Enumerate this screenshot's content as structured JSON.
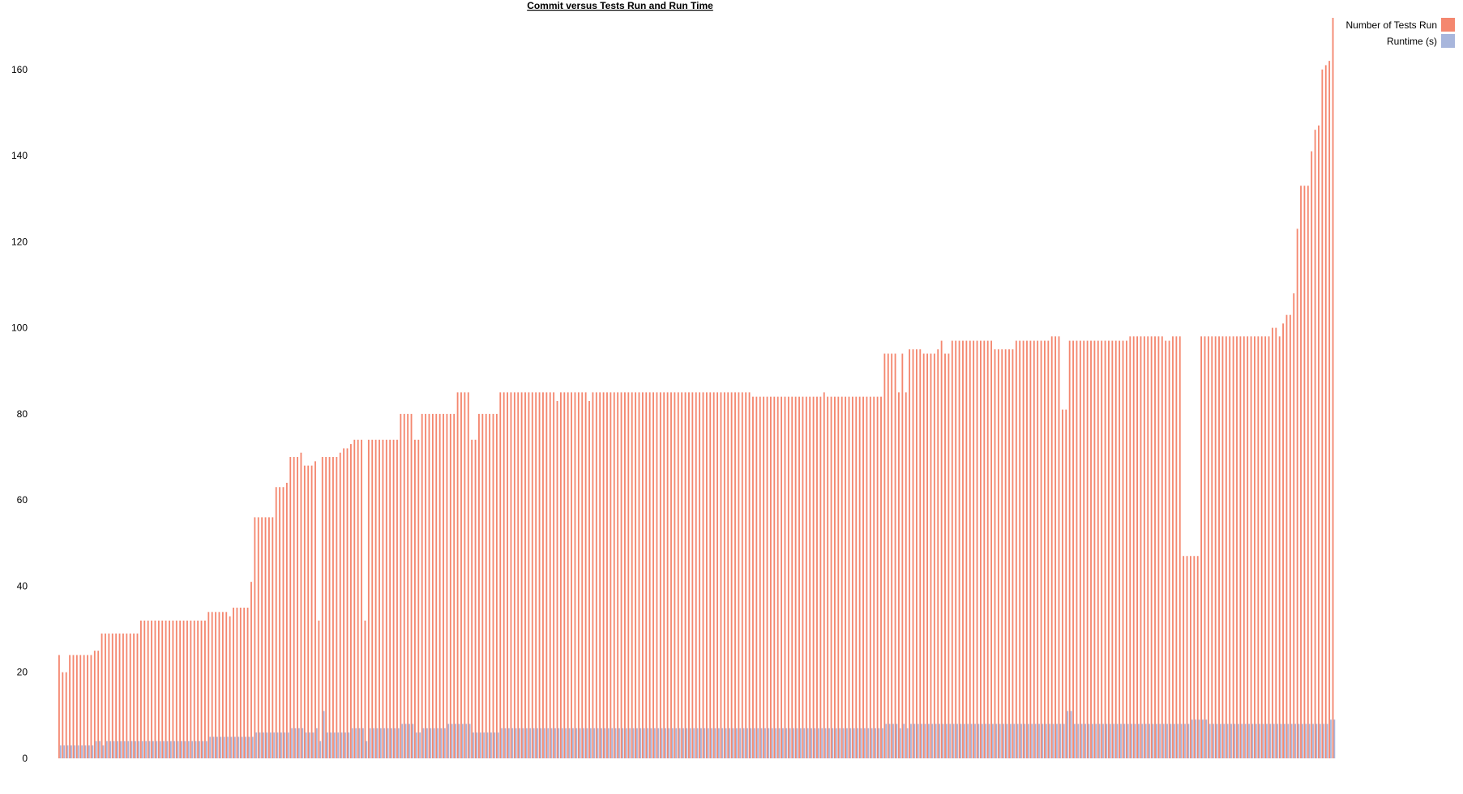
{
  "chart_data": {
    "type": "bar",
    "title": "Commit versus Tests Run and Run Time",
    "xlabel": "",
    "ylabel": "",
    "ylim": [
      0,
      172
    ],
    "yticks": [
      0,
      20,
      40,
      60,
      80,
      100,
      120,
      140,
      160
    ],
    "grid": false,
    "legend_position": "top-right",
    "series": [
      {
        "name": "Number of Tests Run",
        "color": "#f4876f",
        "values": [
          24,
          20,
          20,
          24,
          24,
          24,
          24,
          24,
          24,
          24,
          25,
          25,
          29,
          29,
          29,
          29,
          29,
          29,
          29,
          29,
          29,
          29,
          29,
          32,
          32,
          32,
          32,
          32,
          32,
          32,
          32,
          32,
          32,
          32,
          32,
          32,
          32,
          32,
          32,
          32,
          32,
          32,
          34,
          34,
          34,
          34,
          34,
          34,
          33,
          35,
          35,
          35,
          35,
          35,
          41,
          56,
          56,
          56,
          56,
          56,
          56,
          63,
          63,
          63,
          64,
          70,
          70,
          70,
          71,
          68,
          68,
          68,
          69,
          32,
          70,
          70,
          70,
          70,
          70,
          71,
          72,
          72,
          73,
          74,
          74,
          74,
          32,
          74,
          74,
          74,
          74,
          74,
          74,
          74,
          74,
          74,
          80,
          80,
          80,
          80,
          74,
          74,
          80,
          80,
          80,
          80,
          80,
          80,
          80,
          80,
          80,
          80,
          85,
          85,
          85,
          85,
          74,
          74,
          80,
          80,
          80,
          80,
          80,
          80,
          85,
          85,
          85,
          85,
          85,
          85,
          85,
          85,
          85,
          85,
          85,
          85,
          85,
          85,
          85,
          85,
          83,
          85,
          85,
          85,
          85,
          85,
          85,
          85,
          85,
          83,
          85,
          85,
          85,
          85,
          85,
          85,
          85,
          85,
          85,
          85,
          85,
          85,
          85,
          85,
          85,
          85,
          85,
          85,
          85,
          85,
          85,
          85,
          85,
          85,
          85,
          85,
          85,
          85,
          85,
          85,
          85,
          85,
          85,
          85,
          85,
          85,
          85,
          85,
          85,
          85,
          85,
          85,
          85,
          85,
          85,
          84,
          84,
          84,
          84,
          84,
          84,
          84,
          84,
          84,
          84,
          84,
          84,
          84,
          84,
          84,
          84,
          84,
          84,
          84,
          84,
          85,
          84,
          84,
          84,
          84,
          84,
          84,
          84,
          84,
          84,
          84,
          84,
          84,
          84,
          84,
          84,
          84,
          94,
          94,
          94,
          94,
          85,
          94,
          85,
          95,
          95,
          95,
          95,
          94,
          94,
          94,
          94,
          95,
          97,
          94,
          94,
          97,
          97,
          97,
          97,
          97,
          97,
          97,
          97,
          97,
          97,
          97,
          97,
          95,
          95,
          95,
          95,
          95,
          95,
          97,
          97,
          97,
          97,
          97,
          97,
          97,
          97,
          97,
          97,
          98,
          98,
          98,
          81,
          81,
          97,
          97,
          97,
          97,
          97,
          97,
          97,
          97,
          97,
          97,
          97,
          97,
          97,
          97,
          97,
          97,
          97,
          98,
          98,
          98,
          98,
          98,
          98,
          98,
          98,
          98,
          98,
          97,
          97,
          98,
          98,
          98,
          47,
          47,
          47,
          47,
          47,
          98,
          98,
          98,
          98,
          98,
          98,
          98,
          98,
          98,
          98,
          98,
          98,
          98,
          98,
          98,
          98,
          98,
          98,
          98,
          98,
          100,
          100,
          98,
          101,
          103,
          103,
          108,
          123,
          133,
          133,
          133,
          141,
          146,
          147,
          160,
          161,
          162,
          172
        ]
      },
      {
        "name": "Runtime (s)",
        "color": "#a8b6dc",
        "values": [
          3,
          3,
          3,
          3,
          3,
          3,
          3,
          3,
          3,
          3,
          4,
          4,
          3,
          4,
          4,
          4,
          4,
          4,
          4,
          4,
          4,
          4,
          4,
          4,
          4,
          4,
          4,
          4,
          4,
          4,
          4,
          4,
          4,
          4,
          4,
          4,
          4,
          4,
          4,
          4,
          4,
          4,
          5,
          5,
          5,
          5,
          5,
          5,
          5,
          5,
          5,
          5,
          5,
          5,
          5,
          6,
          6,
          6,
          6,
          6,
          6,
          6,
          6,
          6,
          6,
          7,
          7,
          7,
          7,
          6,
          6,
          6,
          7,
          4,
          11,
          6,
          6,
          6,
          6,
          6,
          6,
          6,
          7,
          7,
          7,
          7,
          4,
          7,
          7,
          7,
          7,
          7,
          7,
          7,
          7,
          7,
          8,
          8,
          8,
          8,
          6,
          6,
          7,
          7,
          7,
          7,
          7,
          7,
          7,
          8,
          8,
          8,
          8,
          8,
          8,
          8,
          6,
          6,
          6,
          6,
          6,
          6,
          6,
          6,
          7,
          7,
          7,
          7,
          7,
          7,
          7,
          7,
          7,
          7,
          7,
          7,
          7,
          7,
          7,
          7,
          7,
          7,
          7,
          7,
          7,
          7,
          7,
          7,
          7,
          7,
          7,
          7,
          7,
          7,
          7,
          7,
          7,
          7,
          7,
          7,
          7,
          7,
          7,
          7,
          7,
          7,
          7,
          7,
          7,
          7,
          7,
          7,
          7,
          7,
          7,
          7,
          7,
          7,
          7,
          7,
          7,
          7,
          7,
          7,
          7,
          7,
          7,
          7,
          7,
          7,
          7,
          7,
          7,
          7,
          7,
          7,
          7,
          7,
          7,
          7,
          7,
          7,
          7,
          7,
          7,
          7,
          7,
          7,
          7,
          7,
          7,
          7,
          7,
          7,
          7,
          7,
          7,
          7,
          7,
          7,
          7,
          7,
          7,
          7,
          7,
          7,
          7,
          7,
          7,
          7,
          7,
          7,
          8,
          8,
          8,
          8,
          7,
          8,
          7,
          8,
          8,
          8,
          8,
          8,
          8,
          8,
          8,
          8,
          8,
          8,
          8,
          8,
          8,
          8,
          8,
          8,
          8,
          8,
          8,
          8,
          8,
          8,
          8,
          8,
          8,
          8,
          8,
          8,
          8,
          8,
          8,
          8,
          8,
          8,
          8,
          8,
          8,
          8,
          8,
          8,
          8,
          8,
          8,
          11,
          11,
          8,
          8,
          8,
          8,
          8,
          8,
          8,
          8,
          8,
          8,
          8,
          8,
          8,
          8,
          8,
          8,
          8,
          8,
          8,
          8,
          8,
          8,
          8,
          8,
          8,
          8,
          8,
          8,
          8,
          8,
          8,
          8,
          8,
          9,
          9,
          9,
          9,
          9,
          8,
          8,
          8,
          8,
          8,
          8,
          8,
          8,
          8,
          8,
          8,
          8,
          8,
          8,
          8,
          8,
          8,
          8,
          8,
          8,
          8,
          8,
          8,
          8,
          8,
          8,
          8,
          8,
          8,
          8,
          8,
          8,
          8,
          8,
          9,
          9,
          9,
          9
        ]
      }
    ]
  }
}
